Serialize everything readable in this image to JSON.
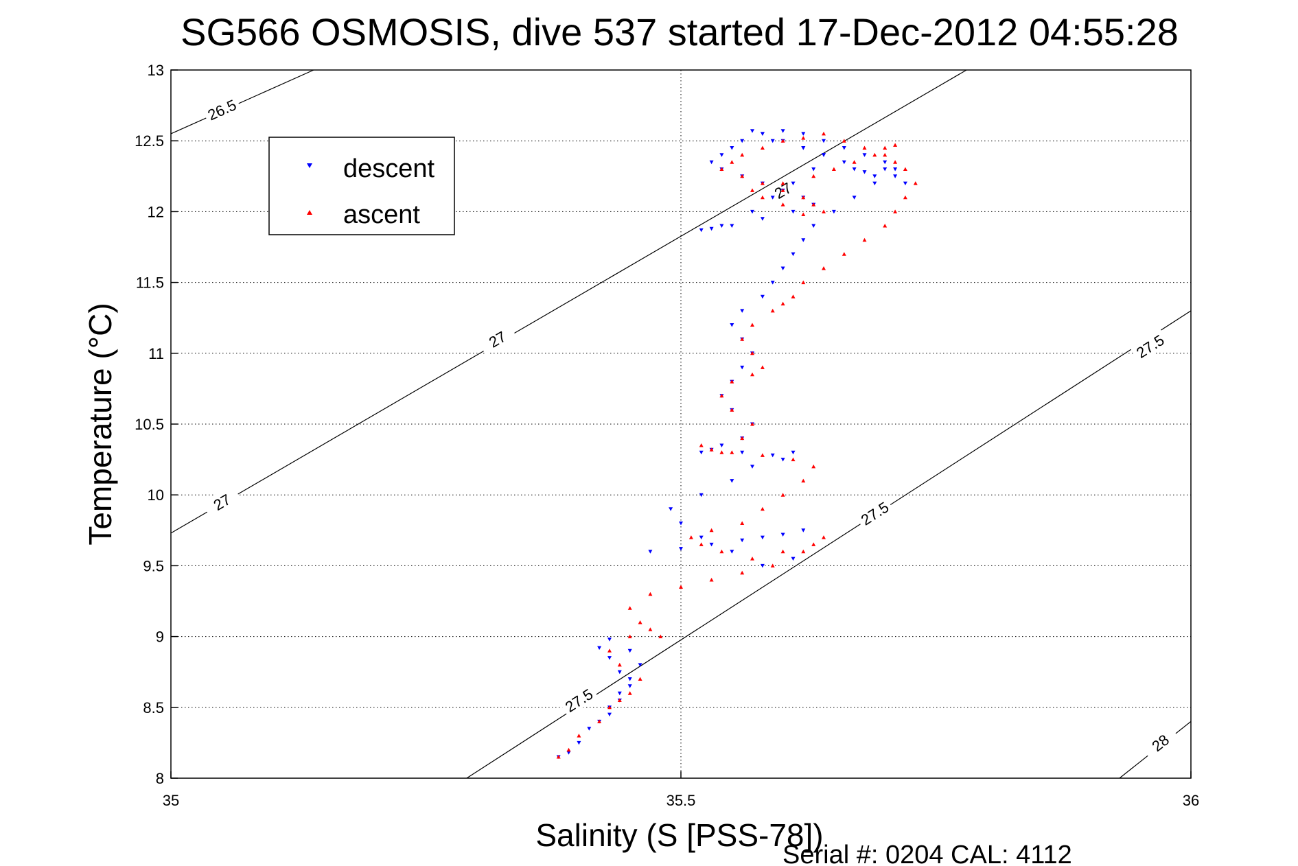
{
  "chart_data": {
    "type": "scatter",
    "title": "SG566 OSMOSIS, dive 537 started 17-Dec-2012 04:55:28",
    "xlabel": "Salinity (S [PSS-78])",
    "ylabel": "Temperature (°C)",
    "xlim": [
      35,
      36
    ],
    "ylim": [
      8,
      13
    ],
    "x_ticks": [
      35,
      35.5,
      36
    ],
    "x_tick_labels": [
      "35",
      "35.5",
      "36"
    ],
    "y_ticks": [
      8,
      8.5,
      9,
      9.5,
      10,
      10.5,
      11,
      11.5,
      12,
      12.5,
      13
    ],
    "y_tick_labels": [
      "8",
      "8.5",
      "9",
      "9.5",
      "10",
      "10.5",
      "11",
      "11.5",
      "12",
      "12.5",
      "13"
    ],
    "grid": true,
    "legend": {
      "position": "top-left"
    },
    "series": [
      {
        "name": "descent",
        "color": "#0000ff",
        "marker": "triangle-down",
        "x": [
          35.38,
          35.39,
          35.4,
          35.41,
          35.43,
          35.44,
          35.45,
          35.44,
          35.43,
          35.42,
          35.43,
          35.45,
          35.46,
          35.45,
          35.44,
          35.43,
          35.42,
          35.44,
          35.47,
          35.5,
          35.53,
          35.56,
          35.58,
          35.6,
          35.62,
          35.61,
          35.58,
          35.55,
          35.52,
          35.5,
          35.49,
          35.52,
          35.55,
          35.57,
          35.6,
          35.61,
          35.59,
          35.56,
          35.53,
          35.52,
          35.54,
          35.56,
          35.57,
          35.55,
          35.54,
          35.55,
          35.56,
          35.57,
          35.56,
          35.55,
          35.56,
          35.58,
          35.59,
          35.6,
          35.61,
          35.62,
          35.63,
          35.65,
          35.67,
          35.69,
          35.7,
          35.71,
          35.72,
          35.71,
          35.7,
          35.68,
          35.66,
          35.64,
          35.62,
          35.6,
          35.58,
          35.56,
          35.55,
          35.54,
          35.53,
          35.54,
          35.56,
          35.58,
          35.6,
          35.62,
          35.63,
          35.61,
          35.58,
          35.55,
          35.53,
          35.52,
          35.54,
          35.57,
          35.59,
          35.61,
          35.63,
          35.64,
          35.62,
          35.6,
          35.58,
          35.57,
          35.59,
          35.62,
          35.64,
          35.66,
          35.67,
          35.68,
          35.69
        ],
        "y": [
          8.15,
          8.18,
          8.25,
          8.35,
          8.45,
          8.55,
          8.65,
          8.75,
          8.85,
          8.92,
          8.98,
          8.9,
          8.8,
          8.7,
          8.6,
          8.5,
          8.4,
          8.55,
          9.6,
          9.62,
          9.65,
          9.68,
          9.7,
          9.72,
          9.75,
          9.55,
          9.5,
          9.6,
          9.7,
          9.8,
          9.9,
          10.0,
          10.1,
          10.2,
          10.25,
          10.3,
          10.28,
          10.3,
          10.32,
          10.3,
          10.35,
          10.4,
          10.5,
          10.6,
          10.7,
          10.8,
          10.9,
          11.0,
          11.1,
          11.2,
          11.3,
          11.4,
          11.5,
          11.6,
          11.7,
          11.8,
          11.9,
          12.0,
          12.1,
          12.2,
          12.3,
          12.25,
          12.2,
          12.3,
          12.35,
          12.4,
          12.45,
          12.5,
          12.55,
          12.57,
          12.55,
          12.5,
          12.45,
          12.4,
          12.35,
          12.3,
          12.25,
          12.2,
          12.15,
          12.1,
          12.05,
          12.0,
          11.95,
          11.9,
          11.88,
          11.87,
          11.9,
          12.0,
          12.1,
          12.2,
          12.3,
          12.4,
          12.45,
          12.5,
          12.55,
          12.57,
          12.5,
          12.45,
          12.4,
          12.35,
          12.3,
          12.28,
          12.25
        ]
      },
      {
        "name": "ascent",
        "color": "#ff0000",
        "marker": "triangle-up",
        "x": [
          35.38,
          35.39,
          35.4,
          35.42,
          35.43,
          35.44,
          35.45,
          35.46,
          35.44,
          35.43,
          35.45,
          35.47,
          35.48,
          35.46,
          35.45,
          35.47,
          35.5,
          35.53,
          35.56,
          35.59,
          35.62,
          35.64,
          35.63,
          35.6,
          35.57,
          35.54,
          35.52,
          35.51,
          35.53,
          35.56,
          35.58,
          35.6,
          35.62,
          35.63,
          35.61,
          35.58,
          35.55,
          35.53,
          35.52,
          35.54,
          35.56,
          35.57,
          35.55,
          35.54,
          35.55,
          35.57,
          35.58,
          35.57,
          35.56,
          35.57,
          35.59,
          35.6,
          35.61,
          35.62,
          35.64,
          35.66,
          35.68,
          35.7,
          35.71,
          35.72,
          35.73,
          35.72,
          35.71,
          35.7,
          35.68,
          35.66,
          35.64,
          35.62,
          35.6,
          35.58,
          35.56,
          35.55,
          35.54,
          35.56,
          35.58,
          35.6,
          35.62,
          35.63,
          35.64,
          35.62,
          35.6,
          35.58,
          35.57,
          35.6,
          35.63,
          35.65,
          35.67,
          35.69,
          35.7,
          35.71
        ],
        "y": [
          8.15,
          8.2,
          8.3,
          8.4,
          8.5,
          8.55,
          8.6,
          8.7,
          8.8,
          8.9,
          9.0,
          9.05,
          9.0,
          9.1,
          9.2,
          9.3,
          9.35,
          9.4,
          9.45,
          9.5,
          9.6,
          9.7,
          9.65,
          9.6,
          9.55,
          9.6,
          9.65,
          9.7,
          9.75,
          9.8,
          9.9,
          10.0,
          10.1,
          10.2,
          10.25,
          10.28,
          10.3,
          10.32,
          10.35,
          10.3,
          10.4,
          10.5,
          10.6,
          10.7,
          10.8,
          10.85,
          10.9,
          11.0,
          11.1,
          11.2,
          11.3,
          11.35,
          11.4,
          11.5,
          11.6,
          11.7,
          11.8,
          11.9,
          12.0,
          12.1,
          12.2,
          12.3,
          12.35,
          12.4,
          12.45,
          12.5,
          12.55,
          12.52,
          12.5,
          12.45,
          12.4,
          12.35,
          12.3,
          12.25,
          12.2,
          12.15,
          12.1,
          12.05,
          12.0,
          11.98,
          12.05,
          12.1,
          12.15,
          12.2,
          12.25,
          12.3,
          12.35,
          12.4,
          12.45,
          12.47
        ]
      }
    ],
    "contours": [
      {
        "label": "26.5",
        "points": [
          [
            35,
            12.55
          ],
          [
            35.14,
            13
          ]
        ]
      },
      {
        "label": "27",
        "points": [
          [
            35,
            9.73
          ],
          [
            35.78,
            13
          ]
        ]
      },
      {
        "label": "27.5",
        "points": [
          [
            35.29,
            8
          ],
          [
            36,
            11.3
          ]
        ]
      },
      {
        "label": "28",
        "points": [
          [
            35.93,
            8
          ],
          [
            36,
            8.4
          ]
        ]
      }
    ],
    "contour_label_positions": [
      {
        "label": "26.5",
        "x": 35.05,
        "y": 12.72
      },
      {
        "label": "27",
        "x": 35.32,
        "y": 11.1
      },
      {
        "label": "27",
        "x": 35.05,
        "y": 9.95
      },
      {
        "label": "27",
        "x": 35.6,
        "y": 12.15
      },
      {
        "label": "27.5",
        "x": 35.4,
        "y": 8.55
      },
      {
        "label": "27.5",
        "x": 35.69,
        "y": 9.87
      },
      {
        "label": "27.5",
        "x": 35.96,
        "y": 11.05
      },
      {
        "label": "28",
        "x": 35.97,
        "y": 8.25
      }
    ]
  },
  "footer": "Serial #: 0204  CAL: 4112"
}
